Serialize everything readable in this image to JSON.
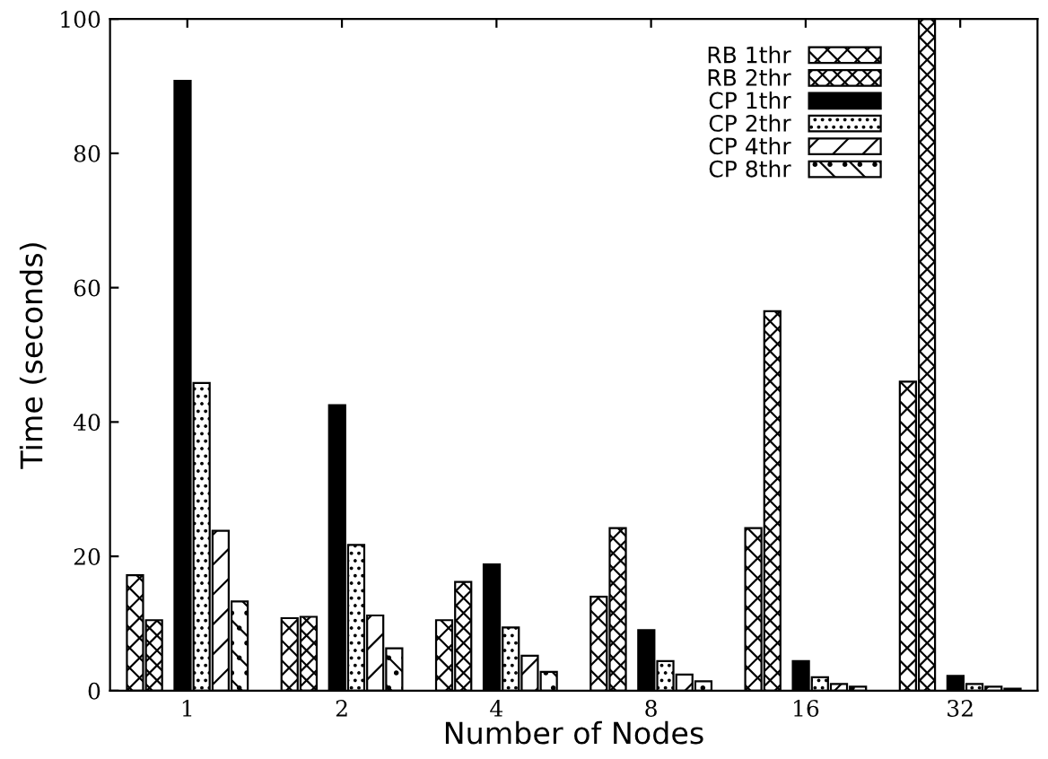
{
  "chart_data": {
    "type": "bar",
    "xlabel": "Number of Nodes",
    "ylabel": "Time (seconds)",
    "categories": [
      "1",
      "2",
      "4",
      "8",
      "16",
      "32"
    ],
    "ylim": [
      0,
      100
    ],
    "yticks": [
      0,
      20,
      40,
      60,
      80,
      100
    ],
    "grid": false,
    "legend": "top right",
    "series": [
      {
        "name": "RB 1thr",
        "color": "#000000",
        "values": [
          17.2,
          10.8,
          10.5,
          14,
          24.2,
          46
        ]
      },
      {
        "name": "RB 2thr",
        "color": "#000000",
        "values": [
          10.5,
          11,
          16.2,
          24.2,
          56.5,
          100
        ]
      },
      {
        "name": "CP 1thr",
        "color": "#000000",
        "values": [
          90.8,
          42.5,
          18.8,
          9,
          4.4,
          2.2
        ]
      },
      {
        "name": "CP 2thr",
        "color": "#000000",
        "values": [
          45.8,
          21.7,
          9.4,
          4.4,
          2.0,
          1.0
        ]
      },
      {
        "name": "CP 4thr",
        "color": "#000000",
        "values": [
          23.8,
          11.2,
          5.2,
          2.4,
          1.0,
          0.6
        ]
      },
      {
        "name": "CP 8thr",
        "color": "#000000",
        "values": [
          13.3,
          6.3,
          2.8,
          1.4,
          0.6,
          0.3
        ]
      }
    ]
  }
}
